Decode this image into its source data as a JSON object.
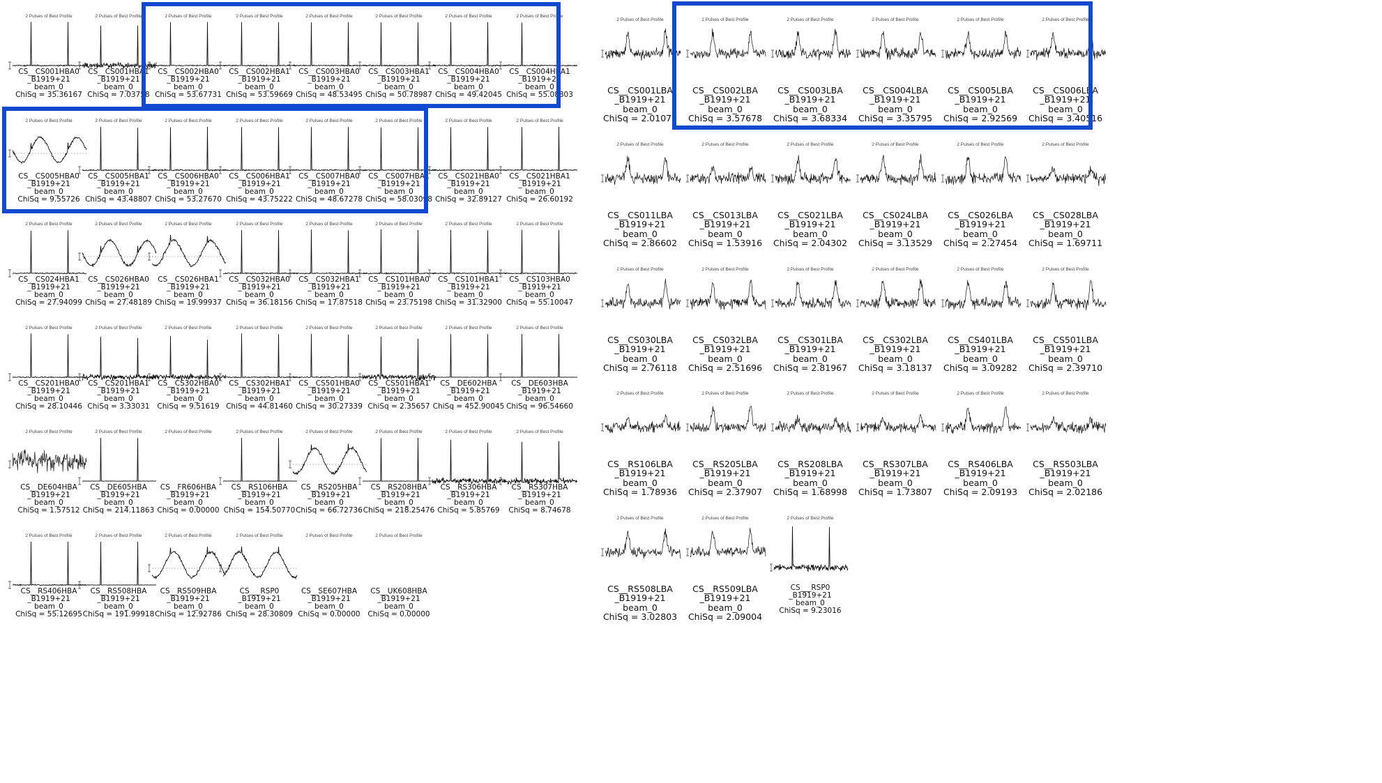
{
  "plot_title": "2 Pulses of Best Profile",
  "source": "B1919+21",
  "beam": "beam_0",
  "chisq_prefix": "ChiSq = ",
  "accent_color": "#1249d1",
  "panels": {
    "hba": [
      {
        "station": "CS__CS001HBA0",
        "chisq": "35.36167",
        "profile": "pulse"
      },
      {
        "station": "CS__CS001HBA1",
        "chisq": "7.03758",
        "profile": "pulse-noisy"
      },
      {
        "station": "CS__CS002HBA0",
        "chisq": "53.67731",
        "profile": "pulse"
      },
      {
        "station": "CS__CS002HBA1",
        "chisq": "53.59669",
        "profile": "pulse"
      },
      {
        "station": "CS__CS003HBA0",
        "chisq": "48.53495",
        "profile": "pulse"
      },
      {
        "station": "CS__CS003HBA1",
        "chisq": "50.78987",
        "profile": "pulse"
      },
      {
        "station": "CS__CS004HBA0",
        "chisq": "49.42045",
        "profile": "pulse"
      },
      {
        "station": "CS__CS004HBA1",
        "chisq": "55.08803",
        "profile": "pulse"
      },
      {
        "station": "CS__CS005HBA0",
        "chisq": "9.55726",
        "profile": "wave"
      },
      {
        "station": "CS__CS005HBA1",
        "chisq": "43.48807",
        "profile": "pulse"
      },
      {
        "station": "CS__CS006HBA0",
        "chisq": "53.27670",
        "profile": "pulse"
      },
      {
        "station": "CS__CS006HBA1",
        "chisq": "43.75222",
        "profile": "pulse"
      },
      {
        "station": "CS__CS007HBA0",
        "chisq": "48.67278",
        "profile": "pulse"
      },
      {
        "station": "CS__CS007HBA1",
        "chisq": "58.03098",
        "profile": "pulse"
      },
      {
        "station": "CS__CS021HBA0",
        "chisq": "32.89127",
        "profile": "pulse"
      },
      {
        "station": "CS__CS021HBA1",
        "chisq": "26.60192",
        "profile": "pulse"
      },
      {
        "station": "CS__CS024HBA1",
        "chisq": "27.94099",
        "profile": "pulse"
      },
      {
        "station": "CS__CS026HBA0",
        "chisq": "27.48189",
        "profile": "wave"
      },
      {
        "station": "CS__CS026HBA1",
        "chisq": "19.99937",
        "profile": "wave"
      },
      {
        "station": "CS__CS032HBA0",
        "chisq": "36.18156",
        "profile": "pulse"
      },
      {
        "station": "CS__CS032HBA1",
        "chisq": "17.87518",
        "profile": "pulse"
      },
      {
        "station": "CS__CS101HBA0",
        "chisq": "23.75198",
        "profile": "pulse"
      },
      {
        "station": "CS__CS101HBA1",
        "chisq": "31.32900",
        "profile": "pulse"
      },
      {
        "station": "CS__CS103HBA0",
        "chisq": "55.10047",
        "profile": "pulse"
      },
      {
        "station": "CS__CS201HBA0",
        "chisq": "28.10446",
        "profile": "pulse"
      },
      {
        "station": "CS__CS201HBA1",
        "chisq": "3.33031",
        "profile": "pulse-noisy"
      },
      {
        "station": "CS__CS302HBA0",
        "chisq": "9.51619",
        "profile": "pulse-noisy"
      },
      {
        "station": "CS__CS302HBA1",
        "chisq": "44.81460",
        "profile": "pulse"
      },
      {
        "station": "CS__CS501HBA0",
        "chisq": "30.27339",
        "profile": "pulse"
      },
      {
        "station": "CS__CS501HBA1",
        "chisq": "2.35657",
        "profile": "pulse-noisy"
      },
      {
        "station": "CS__DE602HBA",
        "chisq": "452.90045",
        "profile": "pulse-clean"
      },
      {
        "station": "CS__DE603HBA",
        "chisq": "96.54660",
        "profile": "pulse-clean"
      },
      {
        "station": "CS__DE604HBA",
        "chisq": "1.57512",
        "profile": "noise"
      },
      {
        "station": "CS__DE605HBA",
        "chisq": "214.11863",
        "profile": "pulse-clean"
      },
      {
        "station": "CS__FR606HBA",
        "chisq": "0.00000",
        "profile": "empty"
      },
      {
        "station": "CS__RS106HBA",
        "chisq": "154.50770",
        "profile": "pulse-clean"
      },
      {
        "station": "CS__RS205HBA",
        "chisq": "66.72736",
        "profile": "wave"
      },
      {
        "station": "CS__RS208HBA",
        "chisq": "218.25476",
        "profile": "pulse-clean"
      },
      {
        "station": "CS__RS306HBA",
        "chisq": "5.85769",
        "profile": "pulse-noisy"
      },
      {
        "station": "CS__RS307HBA",
        "chisq": "8.74678",
        "profile": "pulse-noisy"
      },
      {
        "station": "CS__RS406HBA",
        "chisq": "55.12695",
        "profile": "pulse"
      },
      {
        "station": "CS__RS508HBA",
        "chisq": "191.99918",
        "profile": "pulse-clean"
      },
      {
        "station": "CS__RS509HBA",
        "chisq": "12.92786",
        "profile": "wave"
      },
      {
        "station": "CS___RSP0",
        "chisq": "28.30809",
        "profile": "wave"
      },
      {
        "station": "CS__SE607HBA",
        "chisq": "0.00000",
        "profile": "empty"
      },
      {
        "station": "CS__UK608HBA",
        "chisq": "0.00000",
        "profile": "empty"
      }
    ],
    "lba": [
      {
        "station": "CS__CS001LBA",
        "chisq": "2.01079",
        "profile": "lba"
      },
      {
        "station": "CS__CS002LBA",
        "chisq": "3.57678",
        "profile": "lba"
      },
      {
        "station": "CS__CS003LBA",
        "chisq": "3.68334",
        "profile": "lba"
      },
      {
        "station": "CS__CS004LBA",
        "chisq": "3.35795",
        "profile": "lba"
      },
      {
        "station": "CS__CS005LBA",
        "chisq": "2.92569",
        "profile": "lba"
      },
      {
        "station": "CS__CS006LBA",
        "chisq": "3.40516",
        "profile": "lba"
      },
      {
        "station": "CS__CS011LBA",
        "chisq": "2.86602",
        "profile": "lba"
      },
      {
        "station": "CS__CS013LBA",
        "chisq": "1.53916",
        "profile": "lba-weak"
      },
      {
        "station": "CS__CS021LBA",
        "chisq": "2.04302",
        "profile": "lba"
      },
      {
        "station": "CS__CS024LBA",
        "chisq": "3.13529",
        "profile": "lba"
      },
      {
        "station": "CS__CS026LBA",
        "chisq": "2.27454",
        "profile": "lba"
      },
      {
        "station": "CS__CS028LBA",
        "chisq": "1.69711",
        "profile": "lba-weak"
      },
      {
        "station": "CS__CS030LBA",
        "chisq": "2.76118",
        "profile": "lba"
      },
      {
        "station": "CS__CS032LBA",
        "chisq": "2.51696",
        "profile": "lba"
      },
      {
        "station": "CS__CS301LBA",
        "chisq": "2.81967",
        "profile": "lba"
      },
      {
        "station": "CS__CS302LBA",
        "chisq": "3.18137",
        "profile": "lba"
      },
      {
        "station": "CS__CS401LBA",
        "chisq": "3.09282",
        "profile": "lba"
      },
      {
        "station": "CS__CS501LBA",
        "chisq": "2.39710",
        "profile": "lba"
      },
      {
        "station": "CS__RS106LBA",
        "chisq": "1.78936",
        "profile": "lba-weak"
      },
      {
        "station": "CS__RS205LBA",
        "chisq": "2.37907",
        "profile": "lba"
      },
      {
        "station": "CS__RS208LBA",
        "chisq": "1.68998",
        "profile": "lba-weak"
      },
      {
        "station": "CS__RS307LBA",
        "chisq": "1.73807",
        "profile": "lba-weak"
      },
      {
        "station": "CS__RS406LBA",
        "chisq": "2.09193",
        "profile": "lba"
      },
      {
        "station": "CS__RS503LBA",
        "chisq": "2.02186",
        "profile": "lba-weak"
      },
      {
        "station": "CS__RS508LBA",
        "chisq": "3.02803",
        "profile": "lba"
      },
      {
        "station": "CS__RS509LBA",
        "chisq": "2.09004",
        "profile": "lba"
      },
      {
        "station": "CS___RSP0",
        "chisq": "9.23016",
        "profile": "pulse-noisy"
      }
    ]
  },
  "chart_data": {
    "type": "line",
    "title": "2 Pulses of Best Profile",
    "note": "Grid of pulse-profile thumbnails for pulsar B1919+21 per LOFAR station; each panel captioned with station, source, beam and ChiSq.",
    "hba_chisq": [
      35.36167,
      7.03758,
      53.67731,
      53.59669,
      48.53495,
      50.78987,
      49.42045,
      55.08803,
      9.55726,
      43.48807,
      53.2767,
      43.75222,
      48.67278,
      58.03098,
      32.89127,
      26.60192,
      27.94099,
      27.48189,
      19.99937,
      36.18156,
      17.87518,
      23.75198,
      31.329,
      55.10047,
      28.10446,
      3.33031,
      9.51619,
      44.8146,
      30.27339,
      2.35657,
      452.90045,
      96.5466,
      1.57512,
      214.11863,
      0.0,
      154.5077,
      66.72736,
      218.25476,
      5.85769,
      8.74678,
      55.12695,
      191.99918,
      12.92786,
      28.30809,
      0.0,
      0.0
    ],
    "lba_chisq": [
      2.01079,
      3.57678,
      3.68334,
      3.35795,
      2.92569,
      3.40516,
      2.86602,
      1.53916,
      2.04302,
      3.13529,
      2.27454,
      1.69711,
      2.76118,
      2.51696,
      2.81967,
      3.18137,
      3.09282,
      2.3971,
      1.78936,
      2.37907,
      1.68998,
      1.73807,
      2.09193,
      2.02186,
      3.02803,
      2.09004,
      9.23016
    ]
  }
}
